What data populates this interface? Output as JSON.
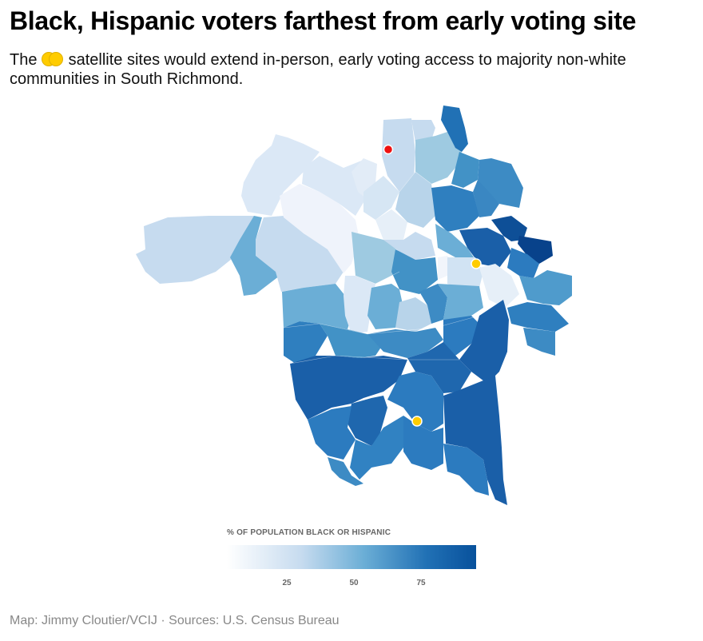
{
  "title": "Black, Hispanic voters farthest from early voting site",
  "subtitle_before": "The",
  "subtitle_after": " satellite sites would extend in-person, early voting access to majority non-white communities in South Richmond.",
  "colors": {
    "satellite_site": "#ffcc00",
    "early_voting_site": "#ee1111",
    "scale_low": "#ffffff",
    "scale_high": "#08519c"
  },
  "legend": {
    "title": "% OF POPULATION BLACK OR HISPANIC",
    "ticks": [
      "25",
      "50",
      "75"
    ]
  },
  "credit": "Map: Jimmy Cloutier/VCIJ · Sources: U.S. Census Bureau"
}
